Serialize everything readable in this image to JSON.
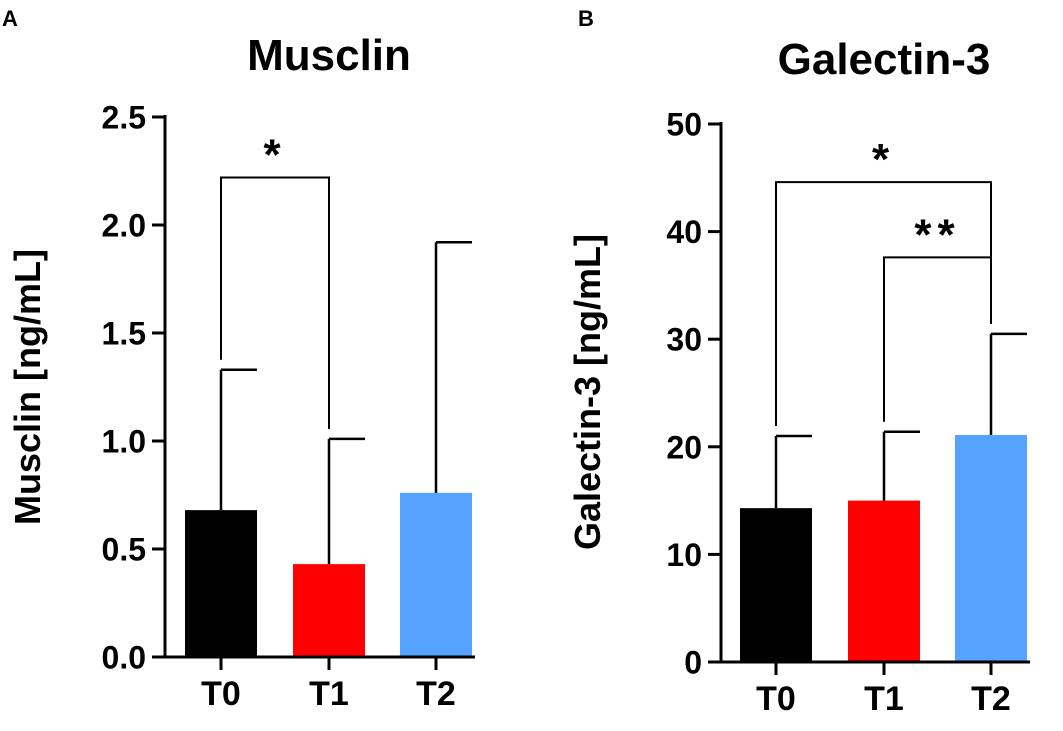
{
  "panel_labels": [
    "A",
    "B"
  ],
  "chart_data": [
    {
      "type": "bar",
      "panel": "A",
      "title": "Musclin",
      "xlabel": "",
      "ylabel": "Musclin [ng/mL]",
      "categories": [
        "T0",
        "T1",
        "T2"
      ],
      "values": [
        0.68,
        0.43,
        0.76
      ],
      "error_upper": [
        1.33,
        1.01,
        1.92
      ],
      "colors": [
        "#000000",
        "#ff0000",
        "#56a3ff"
      ],
      "ylim": [
        0,
        2.5
      ],
      "yticks": [
        0,
        0.5,
        1.0,
        1.5,
        2.0,
        2.5
      ],
      "ytick_labels": [
        "0.0",
        "0.5",
        "1.0",
        "1.5",
        "2.0",
        "2.5"
      ],
      "grid": false,
      "significance": [
        {
          "from": 0,
          "to": 1,
          "label": "*",
          "y": 2.22
        }
      ]
    },
    {
      "type": "bar",
      "panel": "B",
      "title": "Galectin-3",
      "xlabel": "",
      "ylabel": "Galectin-3 [ng/mL]",
      "categories": [
        "T0",
        "T1",
        "T2"
      ],
      "values": [
        14.3,
        15.0,
        21.1
      ],
      "error_upper": [
        21.0,
        21.4,
        30.5
      ],
      "colors": [
        "#000000",
        "#ff0000",
        "#56a3ff"
      ],
      "ylim": [
        0,
        50
      ],
      "yticks": [
        0,
        10,
        20,
        30,
        40,
        50
      ],
      "ytick_labels": [
        "0",
        "10",
        "20",
        "30",
        "40",
        "50"
      ],
      "grid": false,
      "significance": [
        {
          "from": 0,
          "to": 2,
          "label": "*",
          "y": 44.6
        },
        {
          "from": 1,
          "to": 2,
          "label": "**",
          "y": 37.6
        }
      ]
    }
  ]
}
